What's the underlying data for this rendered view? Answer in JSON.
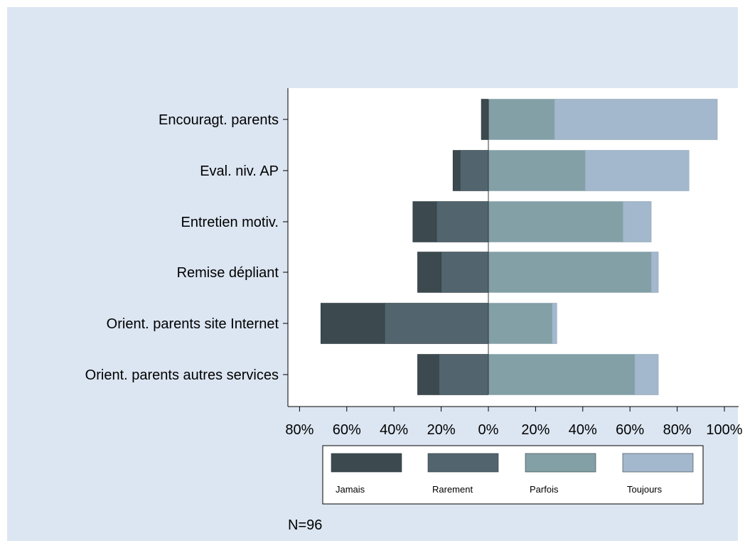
{
  "chart_data": {
    "type": "bar",
    "orientation": "horizontal",
    "stacked": "diverging",
    "categories": [
      "Encouragt. parents",
      "Eval. niv. AP",
      "Entretien motiv.",
      "Remise dépliant",
      "Orient. parents site Internet",
      "Orient. parents autres services"
    ],
    "series": [
      {
        "name": "Jamais",
        "color": "#3c4a50",
        "side": "negative",
        "values": [
          3,
          3,
          10,
          10,
          27,
          9
        ]
      },
      {
        "name": "Rarement",
        "color": "#52656e",
        "side": "negative",
        "values": [
          0,
          12,
          22,
          20,
          44,
          21
        ]
      },
      {
        "name": "Parfois",
        "color": "#82a0a5",
        "side": "positive",
        "values": [
          28,
          41,
          57,
          69,
          27,
          62
        ]
      },
      {
        "name": "Toujours",
        "color": "#a3b8cd",
        "side": "positive",
        "values": [
          69,
          44,
          12,
          3,
          2,
          10
        ]
      }
    ],
    "xticks": [
      "80%",
      "60%",
      "40%",
      "20%",
      "0%",
      "20%",
      "40%",
      "60%",
      "80%",
      "100%"
    ],
    "xlim": [
      -80,
      100
    ],
    "grid": false,
    "legend_position": "bottom",
    "note": "N=96"
  }
}
